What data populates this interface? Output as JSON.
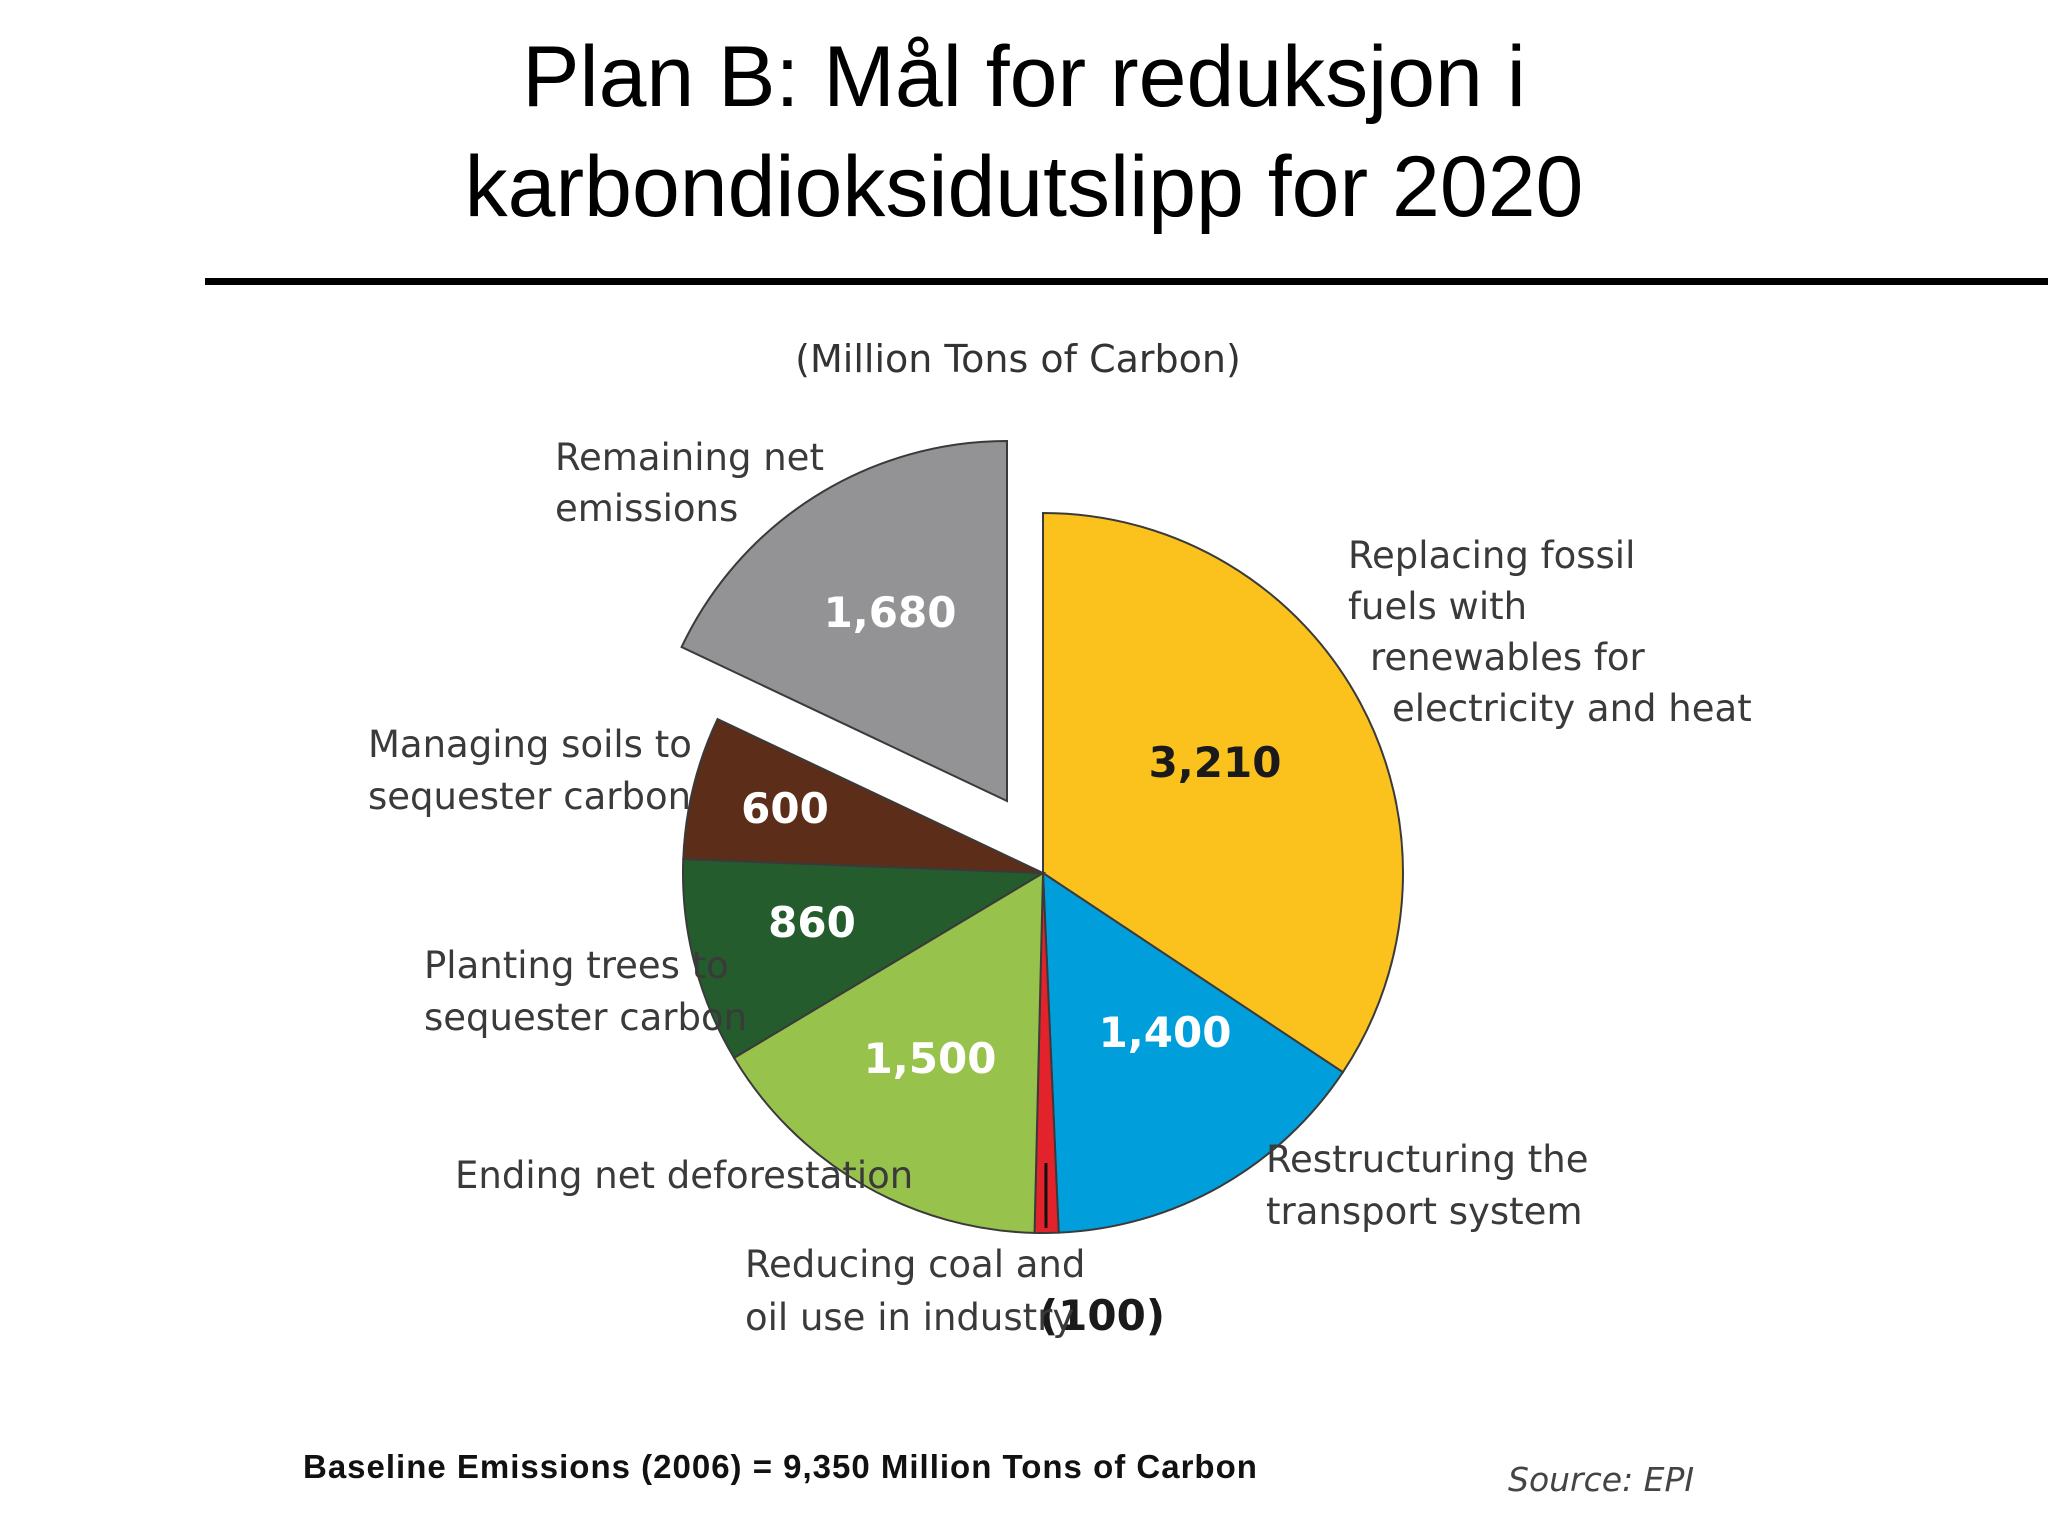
{
  "title": {
    "line1": "Plan B: Mål for reduksjon i",
    "line2": "karbondioksidutslipp for 2020"
  },
  "chart_data": {
    "type": "pie",
    "unit_label": "(Million Tons of Carbon)",
    "slices": [
      {
        "label_lines": [
          "Replacing fossil",
          "fuels with",
          "renewables for",
          "electricity and heat"
        ],
        "value": 3210,
        "value_text": "3,210",
        "color": "#FBC21E",
        "text_color": "#1a1a1a"
      },
      {
        "label_lines": [
          "Restructuring the",
          "transport system"
        ],
        "value": 1400,
        "value_text": "1,400",
        "color": "#009FDC",
        "text_color": "#ffffff"
      },
      {
        "label_lines": [
          "Reducing coal and",
          "oil use in industry"
        ],
        "value": 100,
        "value_text": "(100)",
        "color": "#E3232B",
        "text_color": "#1a1a1a"
      },
      {
        "label_lines": [
          "Ending net deforestation"
        ],
        "value": 1500,
        "value_text": "1,500",
        "color": "#97C34C",
        "text_color": "#ffffff"
      },
      {
        "label_lines": [
          "Planting trees to",
          "sequester carbon"
        ],
        "value": 860,
        "value_text": "860",
        "color": "#245C2D",
        "text_color": "#ffffff"
      },
      {
        "label_lines": [
          "Managing soils to",
          "sequester carbon"
        ],
        "value": 600,
        "value_text": "600",
        "color": "#5C2E1A",
        "text_color": "#ffffff"
      },
      {
        "label_lines": [
          "Remaining net",
          "emissions"
        ],
        "value": 1680,
        "value_text": "1,680",
        "color": "#939295",
        "text_color": "#ffffff",
        "exploded": true
      }
    ],
    "total": 9350,
    "baseline_text": "Baseline Emissions (2006) = 9,350 Million Tons of Carbon",
    "source_text": "Source: EPI"
  }
}
